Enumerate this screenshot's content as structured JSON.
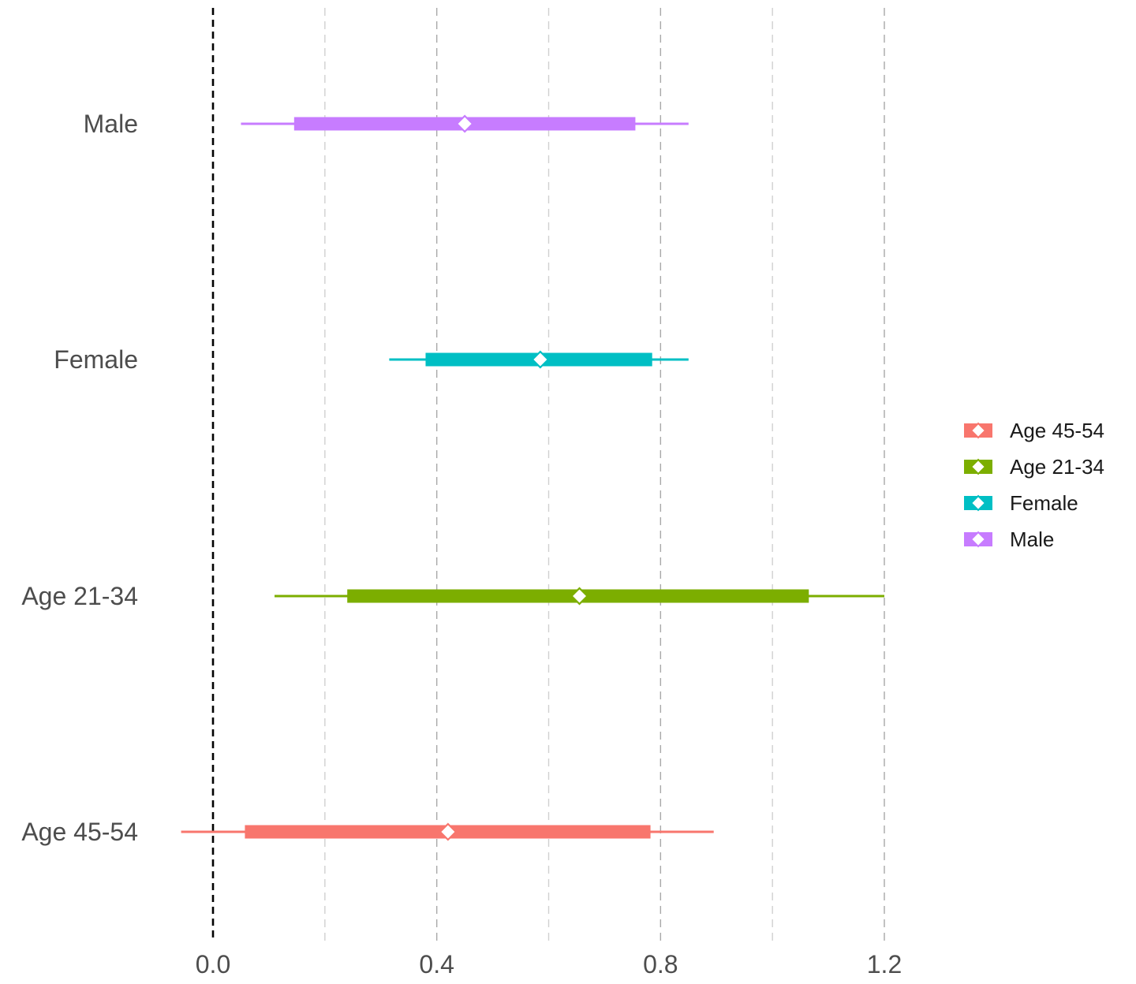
{
  "chart_data": {
    "type": "interval",
    "title": "",
    "xlabel": "",
    "ylabel": "",
    "xlim": [
      -0.08,
      1.42
    ],
    "x_ticks": [
      0.0,
      0.4,
      0.8,
      1.2
    ],
    "x_tick_labels": [
      "0.0",
      "0.4",
      "0.8",
      "1.2"
    ],
    "minor_gridlines": [
      0.2,
      0.6,
      1.0
    ],
    "reference_line": 0.0,
    "grid": true,
    "legend_position": "right",
    "series": [
      {
        "name": "Male",
        "color": "#C77CFF",
        "point": 0.45,
        "inner": [
          0.145,
          0.755
        ],
        "outer": [
          0.05,
          0.85
        ]
      },
      {
        "name": "Female",
        "color": "#00BFC4",
        "point": 0.585,
        "inner": [
          0.38,
          0.785
        ],
        "outer": [
          0.315,
          0.85
        ]
      },
      {
        "name": "Age 21-34",
        "color": "#7CAE00",
        "point": 0.655,
        "inner": [
          0.24,
          1.065
        ],
        "outer": [
          0.11,
          1.2
        ]
      },
      {
        "name": "Age 45-54",
        "color": "#F8766D",
        "point": 0.42,
        "inner": [
          0.057,
          0.782
        ],
        "outer": [
          -0.057,
          0.895
        ]
      }
    ],
    "legend_order": [
      "Age 45-54",
      "Age 21-34",
      "Female",
      "Male"
    ]
  }
}
